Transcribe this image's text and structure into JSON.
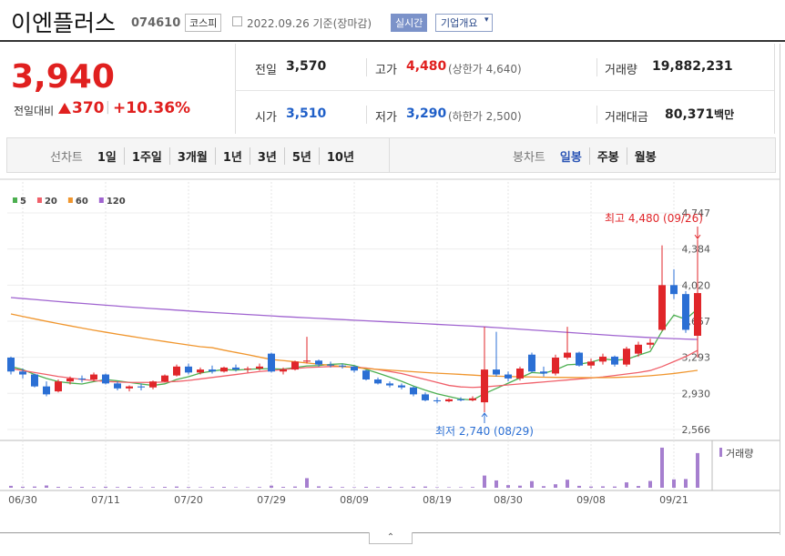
{
  "header": {
    "title": "이엔플러스",
    "code": "074610",
    "market": "코스피",
    "date": "2022.09.26 기준(장마감)",
    "realtime": "실시간",
    "company": "기업개요"
  },
  "price": {
    "current": "3,940",
    "change_label": "전일대비",
    "change": "370",
    "change_pct": "+10.36%"
  },
  "stats": {
    "prev_close_label": "전일",
    "prev_close": "3,570",
    "high_label": "고가",
    "high": "4,480",
    "upper_limit": "(상한가 4,640)",
    "volume_label": "거래량",
    "volume": "19,882,231",
    "open_label": "시가",
    "open": "3,510",
    "low_label": "저가",
    "low": "3,290",
    "lower_limit": "(하한가 2,500)",
    "amount_label": "거래대금",
    "amount": "80,371",
    "amount_unit": "백만"
  },
  "tabs": {
    "line_label": "선차트",
    "line_periods": [
      "1일",
      "1주일",
      "3개월",
      "1년",
      "3년",
      "5년",
      "10년"
    ],
    "candle_label": "봉차트",
    "candle_periods": [
      "일봉",
      "주봉",
      "월봉"
    ]
  },
  "chart_data": {
    "type": "candlestick",
    "categories": [
      null,
      "06/30",
      null,
      null,
      null,
      null,
      null,
      null,
      "07/11",
      null,
      null,
      null,
      null,
      null,
      null,
      "07/20",
      null,
      null,
      null,
      null,
      null,
      null,
      "07/29",
      null,
      null,
      null,
      null,
      null,
      null,
      "08/09",
      null,
      null,
      null,
      null,
      null,
      null,
      "08/19",
      null,
      null,
      null,
      null,
      null,
      "08/30",
      null,
      null,
      null,
      null,
      null,
      null,
      "09/08",
      null,
      null,
      null,
      null,
      null,
      null,
      "09/21",
      null,
      null
    ],
    "open": [
      3290,
      3150,
      3120,
      3000,
      2950,
      3050,
      3080,
      3070,
      3120,
      3030,
      2980,
      3000,
      2990,
      3050,
      3110,
      3200,
      3140,
      3170,
      3150,
      3190,
      3170,
      3180,
      3330,
      3150,
      3170,
      3250,
      3260,
      3220,
      3210,
      3200,
      3160,
      3070,
      3030,
      3010,
      2990,
      2920,
      2860,
      2850,
      2870,
      2860,
      2840,
      3170,
      3120,
      3080,
      3320,
      3150,
      3130,
      3290,
      3340,
      3210,
      3250,
      3300,
      3220,
      3330,
      3420,
      3570,
      4020,
      3930,
      3510
    ],
    "high": [
      3300,
      3180,
      3130,
      3050,
      3070,
      3100,
      3110,
      3140,
      3130,
      3050,
      3010,
      3030,
      3060,
      3120,
      3220,
      3230,
      3190,
      3210,
      3200,
      3220,
      3200,
      3230,
      3340,
      3190,
      3260,
      3500,
      3270,
      3250,
      3230,
      3210,
      3170,
      3090,
      3050,
      3030,
      3000,
      2940,
      2890,
      2880,
      2890,
      2900,
      3600,
      3550,
      3150,
      3200,
      3340,
      3200,
      3320,
      3600,
      3350,
      3280,
      3330,
      3310,
      3400,
      3450,
      3480,
      4420,
      4180,
      3960,
      4480
    ],
    "low": [
      3120,
      3080,
      2990,
      2900,
      2940,
      3020,
      3040,
      3050,
      3020,
      2960,
      2950,
      2960,
      2970,
      3040,
      3100,
      3120,
      3120,
      3130,
      3140,
      3150,
      3140,
      3160,
      3140,
      3120,
      3160,
      3230,
      3200,
      3190,
      3180,
      3140,
      3060,
      3020,
      2990,
      2970,
      2900,
      2850,
      2830,
      2840,
      2850,
      2850,
      2740,
      3100,
      3050,
      3060,
      3140,
      3100,
      3110,
      3270,
      3200,
      3180,
      3220,
      3200,
      3200,
      3300,
      3380,
      3560,
      3880,
      3540,
      3290
    ],
    "close": [
      3150,
      3120,
      3000,
      2920,
      3050,
      3080,
      3070,
      3120,
      3030,
      2980,
      3000,
      2990,
      3050,
      3110,
      3200,
      3140,
      3170,
      3150,
      3190,
      3170,
      3180,
      3200,
      3150,
      3170,
      3250,
      3260,
      3220,
      3210,
      3200,
      3160,
      3070,
      3030,
      3010,
      2990,
      2920,
      2860,
      2850,
      2870,
      2860,
      2880,
      3170,
      3120,
      3080,
      3180,
      3150,
      3130,
      3290,
      3340,
      3210,
      3250,
      3300,
      3220,
      3380,
      3420,
      3440,
      4020,
      3930,
      3570,
      3940
    ],
    "up_color": "#e0262a",
    "down_color": "#2b6fd4",
    "volume_name": "거래량",
    "volume_color": "#a67fcf",
    "volume": [
      1100000,
      600000,
      700000,
      1300000,
      500000,
      400000,
      500000,
      400000,
      600000,
      400000,
      500000,
      300000,
      400000,
      500000,
      700000,
      400000,
      300000,
      400000,
      500000,
      300000,
      300000,
      400000,
      1200000,
      500000,
      700000,
      5500000,
      800000,
      600000,
      400000,
      300000,
      500000,
      400000,
      500000,
      400000,
      600000,
      700000,
      300000,
      300000,
      300000,
      400000,
      7000000,
      4200000,
      1500000,
      1200000,
      3800000,
      900000,
      2000000,
      4600000,
      1100000,
      700000,
      800000,
      700000,
      3100000,
      1000000,
      3900000,
      23000000,
      4800000,
      5000000,
      19882231
    ],
    "volume_ylim": [
      0,
      24000000
    ],
    "series": [
      {
        "name": "5",
        "color": "#4caf50",
        "values": [
          3200,
          3170,
          3120,
          3080,
          3048,
          3034,
          3024,
          3048,
          3070,
          3056,
          3040,
          3024,
          3010,
          3026,
          3070,
          3098,
          3134,
          3154,
          3170,
          3164,
          3172,
          3178,
          3178,
          3174,
          3190,
          3206,
          3210,
          3222,
          3228,
          3210,
          3172,
          3134,
          3094,
          3052,
          3004,
          2962,
          2926,
          2898,
          2872,
          2864,
          2926,
          2980,
          3032,
          3086,
          3140,
          3132,
          3166,
          3218,
          3224,
          3244,
          3278,
          3264,
          3272,
          3314,
          3352,
          3556,
          3718,
          3676,
          3780
        ]
      },
      {
        "name": "20",
        "color": "#f0606a",
        "values": [
          3180,
          3160,
          3140,
          3120,
          3100,
          3085,
          3070,
          3060,
          3050,
          3045,
          3040,
          3040,
          3040,
          3045,
          3050,
          3060,
          3075,
          3090,
          3105,
          3120,
          3135,
          3150,
          3160,
          3170,
          3180,
          3190,
          3195,
          3200,
          3200,
          3195,
          3185,
          3170,
          3150,
          3130,
          3100,
          3070,
          3040,
          3010,
          2995,
          2990,
          2995,
          3005,
          3015,
          3025,
          3035,
          3045,
          3055,
          3065,
          3075,
          3085,
          3095,
          3110,
          3125,
          3140,
          3160,
          3200,
          3250,
          3300,
          3363
        ]
      },
      {
        "name": "60",
        "color": "#f0962e",
        "values": [
          3730,
          3705,
          3680,
          3656,
          3632,
          3610,
          3588,
          3566,
          3546,
          3526,
          3507,
          3488,
          3470,
          3452,
          3434,
          3417,
          3400,
          3390,
          3365,
          3342,
          3320,
          3295,
          3271,
          3260,
          3248,
          3236,
          3224,
          3212,
          3200,
          3190,
          3180,
          3172,
          3164,
          3156,
          3148,
          3140,
          3133,
          3127,
          3121,
          3114,
          3107,
          3103,
          3100,
          3097,
          3095,
          3093,
          3091,
          3090,
          3089,
          3088,
          3088,
          3090,
          3094,
          3100,
          3108,
          3118,
          3130,
          3146,
          3162
        ]
      },
      {
        "name": "120",
        "color": "#a064d0",
        "values": [
          3895,
          3885,
          3875,
          3865,
          3855,
          3845,
          3836,
          3827,
          3818,
          3809,
          3800,
          3792,
          3784,
          3776,
          3768,
          3760,
          3752,
          3745,
          3738,
          3731,
          3724,
          3717,
          3710,
          3703,
          3697,
          3691,
          3685,
          3679,
          3673,
          3667,
          3661,
          3655,
          3649,
          3643,
          3637,
          3631,
          3625,
          3619,
          3613,
          3607,
          3600,
          3592,
          3584,
          3576,
          3568,
          3560,
          3552,
          3544,
          3536,
          3528,
          3520,
          3512,
          3505,
          3498,
          3492,
          3486,
          3481,
          3477,
          3473
        ]
      }
    ],
    "ylim": [
      2566,
      4747
    ],
    "yticks": [
      {
        "value": 2566,
        "label": "2,566"
      },
      {
        "value": 2930,
        "label": "2,930"
      },
      {
        "value": 3293,
        "label": "3,293"
      },
      {
        "value": 3657,
        "label": "3,657"
      },
      {
        "value": 4020,
        "label": "4,020"
      },
      {
        "value": 4384,
        "label": "4,384"
      },
      {
        "value": 4747,
        "label": "4,747"
      }
    ],
    "grid": true,
    "high_annotation": "최고 4,480 (09/26)",
    "low_annotation": "최저 2,740 (08/29)"
  }
}
